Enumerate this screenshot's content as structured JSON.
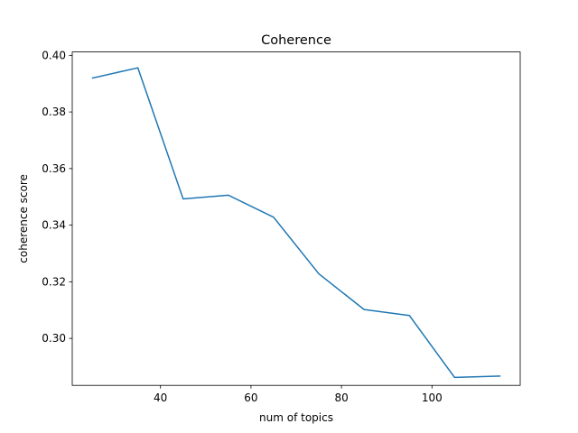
{
  "chart_data": {
    "type": "line",
    "title": "Coherence",
    "xlabel": "num of topics",
    "ylabel": "coherence score",
    "x": [
      25,
      35,
      45,
      55,
      65,
      75,
      85,
      95,
      105,
      115
    ],
    "series": [
      {
        "values": [
          0.392,
          0.3956,
          0.3493,
          0.3506,
          0.3428,
          0.3228,
          0.3102,
          0.3081,
          0.2862,
          0.2867
        ]
      }
    ],
    "xlim": [
      20.5,
      119.5
    ],
    "ylim": [
      0.2834,
      0.4012
    ],
    "xticks": [
      40,
      60,
      80,
      100
    ],
    "yticks": [
      0.3,
      0.32,
      0.34,
      0.36,
      0.38,
      0.4
    ],
    "grid": false,
    "line_color": "#1f77b4"
  }
}
